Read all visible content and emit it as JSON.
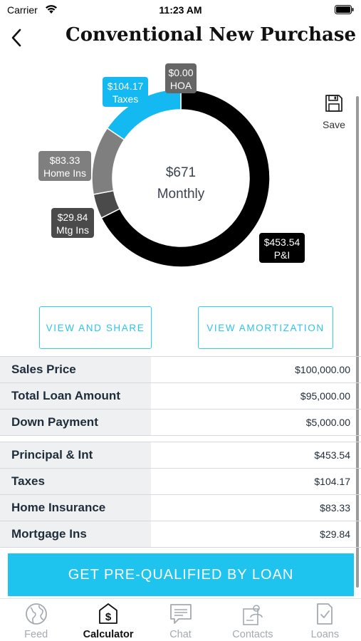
{
  "status_bar": {
    "carrier": "Carrier",
    "time": "11:23 AM"
  },
  "header": {
    "title": "Conventional New Purchase"
  },
  "save": {
    "label": "Save"
  },
  "chart_data": {
    "type": "pie",
    "center_value": "$671",
    "center_label": "Monthly",
    "slices": [
      {
        "name": "P&I",
        "value": 453.54,
        "label": "$453.54",
        "color": "#000000"
      },
      {
        "name": "Mtg Ins",
        "value": 29.84,
        "label": "$29.84",
        "color": "#4a4a4a"
      },
      {
        "name": "Home Ins",
        "value": 83.33,
        "label": "$83.33",
        "color": "#7f7f7f"
      },
      {
        "name": "Taxes",
        "value": 104.17,
        "label": "$104.17",
        "color": "#13b9f0"
      },
      {
        "name": "HOA",
        "value": 0.0,
        "label": "$0.00",
        "color": "#666666"
      }
    ]
  },
  "actions": {
    "view_share": "VIEW AND SHARE",
    "view_amortization": "VIEW AMORTIZATION"
  },
  "loan_details": [
    {
      "label": "Sales Price",
      "value": "$100,000.00"
    },
    {
      "label": "Total Loan Amount",
      "value": "$95,000.00"
    },
    {
      "label": "Down Payment",
      "value": "$5,000.00"
    }
  ],
  "payment_details": [
    {
      "label": "Principal & Int",
      "value": "$453.54"
    },
    {
      "label": "Taxes",
      "value": "$104.17"
    },
    {
      "label": "Home Insurance",
      "value": "$83.33"
    },
    {
      "label": "Mortgage Ins",
      "value": "$29.84"
    }
  ],
  "cta": {
    "label": "GET PRE-QUALIFIED BY LOAN"
  },
  "tabs": [
    {
      "label": "Feed",
      "icon": "globe-icon"
    },
    {
      "label": "Calculator",
      "icon": "calculator-dollar-icon",
      "active": true
    },
    {
      "label": "Chat",
      "icon": "chat-icon"
    },
    {
      "label": "Contacts",
      "icon": "contacts-icon"
    },
    {
      "label": "Loans",
      "icon": "loans-document-icon"
    }
  ]
}
